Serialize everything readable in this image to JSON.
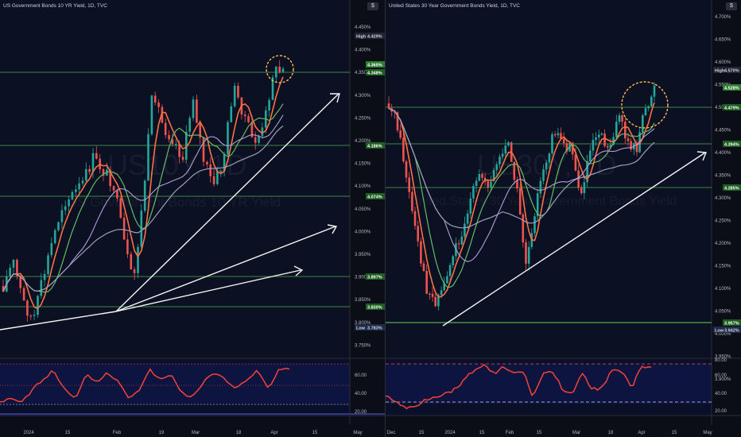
{
  "colors": {
    "background": "#0c0e17",
    "green_level": "#4caf50",
    "arrow": "#ffffff",
    "rsi": "#f44336",
    "highlight": "#ffb74d",
    "candle_up": "#26a69a",
    "candle_down": "#ef5350"
  },
  "left": {
    "title": "US Government Bonds 10 YR Yield, 1D, TVC",
    "currency_button": "$",
    "watermark_symbol": "US10Y, 1D",
    "watermark_name": "US Government Bonds 10 YR Yield",
    "price_axis": [
      "4.450%",
      "4.400%",
      "4.350%",
      "4.300%",
      "4.250%",
      "4.200%",
      "4.150%",
      "4.100%",
      "4.050%",
      "4.000%",
      "3.950%",
      "3.900%",
      "3.850%",
      "3.800%",
      "3.750%"
    ],
    "tags": {
      "high": {
        "label": "High",
        "value": "4.429%"
      },
      "t1": "4.365%",
      "t2": "4.348%",
      "t3": "4.186%",
      "t4": "4.074%",
      "t5": "3.897%",
      "t6": "3.830%",
      "low": {
        "label": "Low",
        "value": "3.783%"
      }
    },
    "rsi_axis": [
      "60.00",
      "40.00",
      "20.00"
    ],
    "time_axis": [
      "2024",
      "15",
      "Feb",
      "19",
      "Mar",
      "18",
      "Apr",
      "15",
      "May"
    ]
  },
  "right": {
    "title": "United States 30 Year Government Bonds Yield, 1D, TVC",
    "currency_button": "$",
    "watermark_symbol": "US30Y, 1D",
    "watermark_name": "United States 30 Year Government Bonds Yield",
    "price_axis": [
      "4.700%",
      "4.650%",
      "4.600%",
      "4.550%",
      "4.500%",
      "4.450%",
      "4.400%",
      "4.350%",
      "4.300%",
      "4.250%",
      "4.200%",
      "4.150%",
      "4.100%",
      "4.050%",
      "4.000%",
      "3.950%",
      "3.900%"
    ],
    "tags": {
      "high": {
        "label": "High",
        "value": "4.570%"
      },
      "t1": "4.528%",
      "t2": "4.479%",
      "t3": "4.394%",
      "t4": "4.285%",
      "t5": "3.957%",
      "low": {
        "label": "Low",
        "value": "3.942%"
      }
    },
    "rsi_axis": [
      "80.00",
      "60.00",
      "40.00",
      "20.00"
    ],
    "time_axis": [
      "Dec",
      "15",
      "2024",
      "15",
      "Feb",
      "15",
      "Mar",
      "18",
      "Apr",
      "15",
      "May"
    ]
  }
}
